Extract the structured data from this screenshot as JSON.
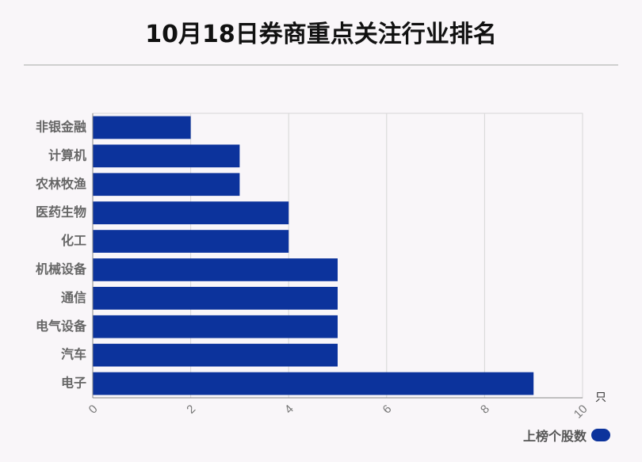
{
  "chart_data": {
    "type": "bar",
    "orientation": "horizontal",
    "title": "10月18日券商重点关注行业排名",
    "categories": [
      "非银金融",
      "计算机",
      "农林牧渔",
      "医药生物",
      "化工",
      "机械设备",
      "通信",
      "电气设备",
      "汽车",
      "电子"
    ],
    "series": [
      {
        "name": "上榜个股数",
        "values": [
          2,
          3,
          3,
          4,
          4,
          5,
          5,
          5,
          5,
          9
        ],
        "color": "#0c339c"
      }
    ],
    "xlim": [
      0,
      10
    ],
    "xticks": [
      0,
      2,
      4,
      6,
      8,
      10
    ],
    "xunit": "只",
    "grid": true,
    "legend": "bottom-right"
  }
}
